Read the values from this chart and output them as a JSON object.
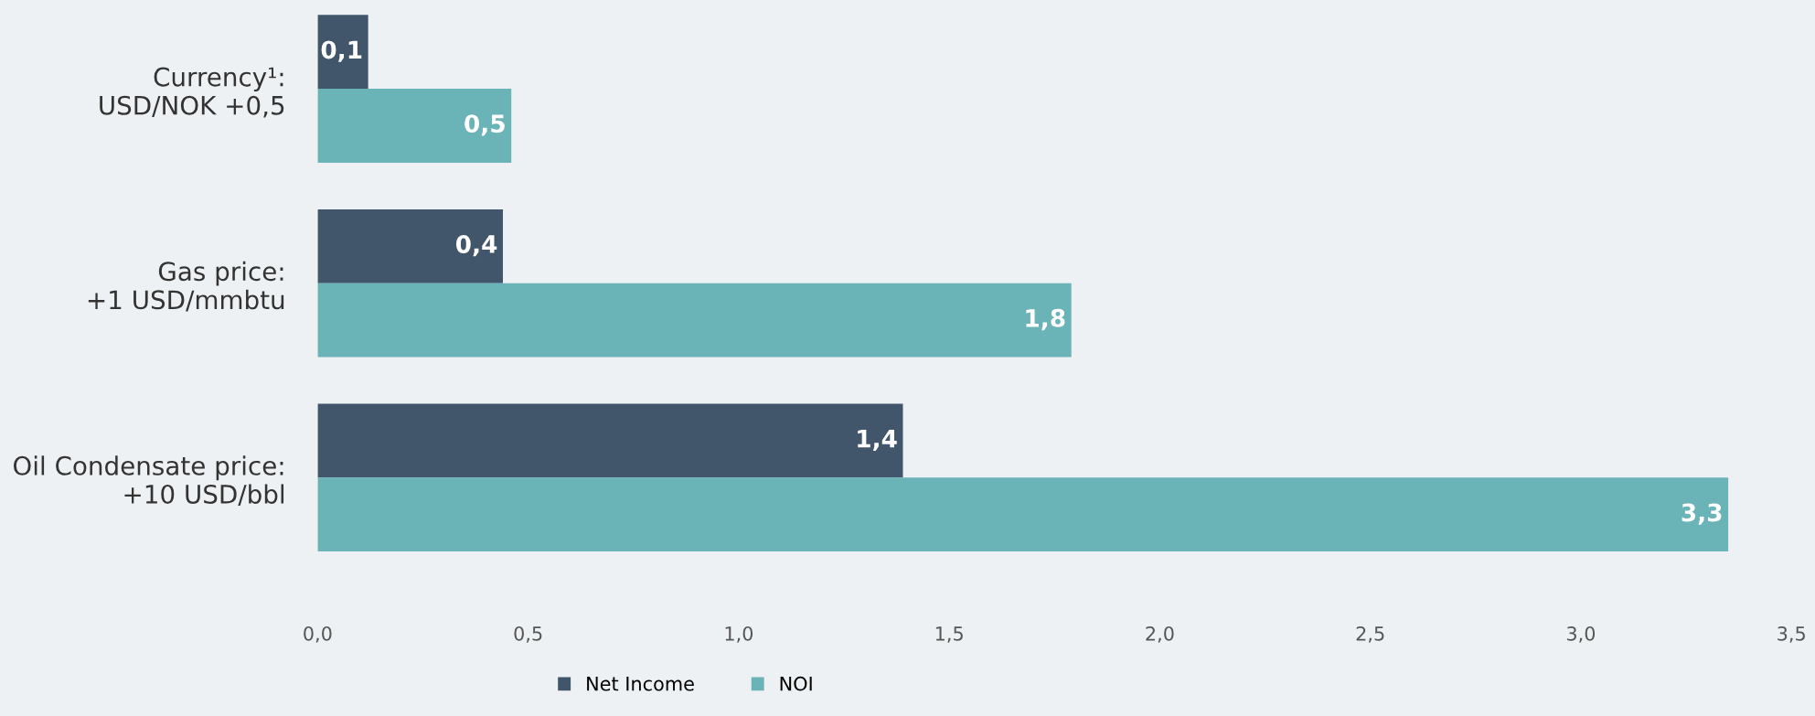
{
  "chart_data": {
    "type": "bar",
    "orientation": "horizontal",
    "categories": [
      "Currency¹:\nUSD/NOK +0,5",
      "Gas price:\n+1 USD/mmbtu",
      "Oil Condensate price:\n+10 USD/bbl"
    ],
    "series": [
      {
        "name": "Net Income",
        "color": "#41566a",
        "values": [
          0.12,
          0.44,
          1.39
        ],
        "value_labels": [
          "0,1",
          "0,4",
          "1,4"
        ]
      },
      {
        "name": "NOI",
        "color": "#6ab3b6",
        "values": [
          0.46,
          1.79,
          3.35
        ],
        "value_labels": [
          "0,5",
          "1,8",
          "3,3"
        ]
      }
    ],
    "xlim": [
      0,
      3.5
    ],
    "xticks": [
      {
        "value": 0,
        "label": "0,0"
      },
      {
        "value": 0.5,
        "label": "0,5"
      },
      {
        "value": 1,
        "label": "1,0"
      },
      {
        "value": 1.5,
        "label": "1,5"
      },
      {
        "value": 2,
        "label": "2,0"
      },
      {
        "value": 2.5,
        "label": "2,5"
      },
      {
        "value": 3,
        "label": "3,0"
      },
      {
        "value": 3.5,
        "label": "3,5"
      }
    ],
    "legend": "bottom",
    "grid": false
  }
}
